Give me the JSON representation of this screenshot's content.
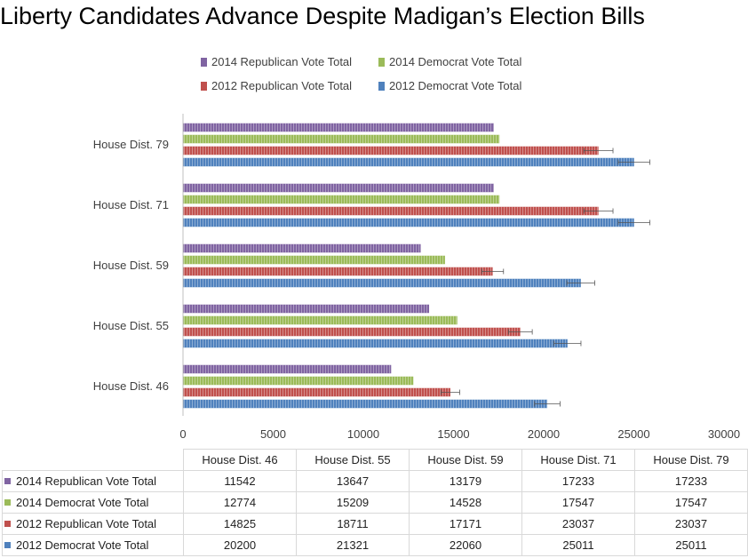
{
  "chart_data": {
    "type": "bar",
    "orientation": "horizontal",
    "title": "Liberty Candidates Advance Despite Madigan’s Election Bills",
    "categories": [
      "House Dist. 46",
      "House Dist. 55",
      "House Dist. 59",
      "House Dist. 71",
      "House Dist. 79"
    ],
    "series": [
      {
        "name": "2014 Republican Vote Total",
        "color": "#8064a2",
        "values": [
          11542,
          13647,
          13179,
          17233,
          17233
        ]
      },
      {
        "name": "2014 Democrat Vote Total",
        "color": "#9bbb59",
        "values": [
          12774,
          15209,
          14528,
          17547,
          17547
        ]
      },
      {
        "name": "2012 Republican Vote Total",
        "color": "#c0504d",
        "values": [
          14825,
          18711,
          17171,
          23037,
          23037
        ],
        "error_bars": true
      },
      {
        "name": "2012 Democrat Vote Total",
        "color": "#4f81bd",
        "values": [
          20200,
          21321,
          22060,
          25011,
          25011
        ],
        "error_bars": true
      }
    ],
    "xlim": [
      0,
      30000
    ],
    "xticks": [
      "0",
      "5000",
      "10000",
      "15000",
      "20000",
      "25000",
      "30000"
    ],
    "legend_position": "top",
    "grid": false,
    "data_table": true
  }
}
